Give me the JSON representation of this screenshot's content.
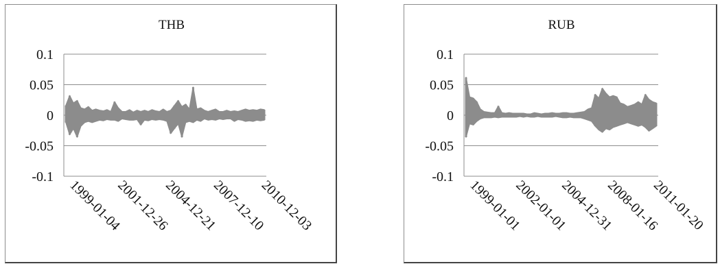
{
  "chart_data": [
    {
      "type": "line",
      "title": "THB",
      "xlabel": "",
      "ylabel": "",
      "ylim": [
        -0.1,
        0.1
      ],
      "yticks": [
        "0.1",
        "0.05",
        "0",
        "-0.05",
        "-0.1"
      ],
      "xticks": [
        "1999-01-04",
        "2001-12-26",
        "2004-12-21",
        "2007-12-10",
        "2010-12-03"
      ],
      "grid": true,
      "legend": "none",
      "color": "#8c8c8c",
      "series": [
        {
          "x": [
            "1999-01-04",
            "1999-04-01",
            "1999-07-01",
            "1999-10-01",
            "2000-01-03",
            "2000-04-03",
            "2000-07-03",
            "2000-10-02",
            "2001-01-02",
            "2001-04-02",
            "2001-07-02",
            "2001-10-01",
            "2002-01-02",
            "2002-04-01",
            "2002-07-01",
            "2002-10-01",
            "2003-01-02",
            "2003-04-01",
            "2003-07-01",
            "2003-10-01",
            "2004-01-02",
            "2004-04-01",
            "2004-07-01",
            "2004-10-01",
            "2005-01-03",
            "2005-04-01",
            "2005-07-01",
            "2005-10-03",
            "2006-01-02",
            "2006-04-03",
            "2006-07-03",
            "2006-10-02",
            "2007-01-02",
            "2007-04-02",
            "2007-07-02",
            "2007-10-01",
            "2008-01-02",
            "2008-04-01",
            "2008-07-01",
            "2008-10-01",
            "2009-01-02",
            "2009-04-01",
            "2009-07-01",
            "2009-10-01",
            "2010-01-04",
            "2010-04-01",
            "2010-07-01",
            "2010-10-01",
            "2011-01-03",
            "2011-04-01",
            "2011-07-01",
            "2011-10-03",
            "2012-01-02",
            "2012-04-02"
          ],
          "high": [
            0.016,
            0.032,
            0.02,
            0.024,
            0.012,
            0.01,
            0.014,
            0.008,
            0.01,
            0.008,
            0.007,
            0.009,
            0.006,
            0.022,
            0.012,
            0.006,
            0.006,
            0.009,
            0.005,
            0.008,
            0.006,
            0.008,
            0.006,
            0.009,
            0.007,
            0.006,
            0.01,
            0.006,
            0.008,
            0.016,
            0.024,
            0.014,
            0.018,
            0.01,
            0.046,
            0.01,
            0.012,
            0.008,
            0.006,
            0.008,
            0.01,
            0.006,
            0.006,
            0.008,
            0.006,
            0.007,
            0.006,
            0.008,
            0.01,
            0.008,
            0.009,
            0.008,
            0.01,
            0.009
          ],
          "low": [
            -0.012,
            -0.032,
            -0.022,
            -0.036,
            -0.018,
            -0.012,
            -0.01,
            -0.012,
            -0.01,
            -0.008,
            -0.009,
            -0.007,
            -0.008,
            -0.008,
            -0.01,
            -0.006,
            -0.007,
            -0.008,
            -0.008,
            -0.007,
            -0.016,
            -0.008,
            -0.009,
            -0.007,
            -0.008,
            -0.007,
            -0.008,
            -0.01,
            -0.03,
            -0.022,
            -0.014,
            -0.036,
            -0.012,
            -0.01,
            -0.012,
            -0.008,
            -0.01,
            -0.006,
            -0.008,
            -0.007,
            -0.008,
            -0.006,
            -0.007,
            -0.006,
            -0.006,
            -0.01,
            -0.007,
            -0.008,
            -0.01,
            -0.009,
            -0.01,
            -0.008,
            -0.009,
            -0.008
          ]
        }
      ]
    },
    {
      "type": "line",
      "title": "RUB",
      "xlabel": "",
      "ylabel": "",
      "ylim": [
        -0.1,
        0.1
      ],
      "yticks": [
        "0.1",
        "0.05",
        "0",
        "-0.05",
        "-0.1"
      ],
      "xticks": [
        "1999-01-01",
        "2002-01-01",
        "2004-12-31",
        "2008-01-16",
        "2011-01-20"
      ],
      "grid": true,
      "legend": "none",
      "color": "#8c8c8c",
      "series": [
        {
          "x": [
            "1999-01-01",
            "1999-04-01",
            "1999-07-01",
            "1999-10-01",
            "2000-01-03",
            "2000-04-03",
            "2000-07-03",
            "2000-10-02",
            "2001-01-02",
            "2001-04-02",
            "2001-07-02",
            "2001-10-01",
            "2002-01-02",
            "2002-04-01",
            "2002-07-01",
            "2002-10-01",
            "2003-01-02",
            "2003-04-01",
            "2003-07-01",
            "2003-10-01",
            "2004-01-02",
            "2004-04-01",
            "2004-07-01",
            "2004-10-01",
            "2005-01-03",
            "2005-04-01",
            "2005-07-01",
            "2005-10-03",
            "2006-01-02",
            "2006-04-03",
            "2006-07-03",
            "2006-10-02",
            "2007-01-02",
            "2007-04-02",
            "2007-07-02",
            "2007-10-01",
            "2008-01-02",
            "2008-04-01",
            "2008-07-01",
            "2008-10-01",
            "2009-01-02",
            "2009-04-01",
            "2009-07-01",
            "2009-10-01",
            "2010-01-04",
            "2010-04-01",
            "2010-07-01",
            "2010-10-01",
            "2011-01-03",
            "2011-04-01",
            "2011-07-01",
            "2011-10-03",
            "2012-01-02",
            "2012-04-02"
          ],
          "high": [
            0.062,
            0.03,
            0.028,
            0.022,
            0.01,
            0.006,
            0.005,
            0.004,
            0.004,
            0.015,
            0.004,
            0.003,
            0.004,
            0.003,
            0.003,
            0.003,
            0.003,
            0.002,
            0.002,
            0.004,
            0.003,
            0.002,
            0.003,
            0.003,
            0.004,
            0.003,
            0.003,
            0.004,
            0.004,
            0.003,
            0.003,
            0.004,
            0.005,
            0.006,
            0.01,
            0.012,
            0.034,
            0.028,
            0.044,
            0.036,
            0.03,
            0.032,
            0.03,
            0.02,
            0.018,
            0.014,
            0.016,
            0.018,
            0.022,
            0.018,
            0.034,
            0.026,
            0.022,
            0.02
          ],
          "low": [
            -0.036,
            -0.014,
            -0.016,
            -0.01,
            -0.006,
            -0.004,
            -0.004,
            -0.004,
            -0.003,
            -0.004,
            -0.003,
            -0.003,
            -0.003,
            -0.003,
            -0.003,
            -0.002,
            -0.003,
            -0.002,
            -0.003,
            -0.003,
            -0.002,
            -0.003,
            -0.003,
            -0.003,
            -0.003,
            -0.002,
            -0.003,
            -0.004,
            -0.004,
            -0.003,
            -0.004,
            -0.004,
            -0.004,
            -0.006,
            -0.008,
            -0.01,
            -0.018,
            -0.024,
            -0.028,
            -0.022,
            -0.024,
            -0.02,
            -0.018,
            -0.016,
            -0.014,
            -0.012,
            -0.014,
            -0.016,
            -0.018,
            -0.016,
            -0.02,
            -0.026,
            -0.022,
            -0.018
          ]
        }
      ]
    }
  ]
}
